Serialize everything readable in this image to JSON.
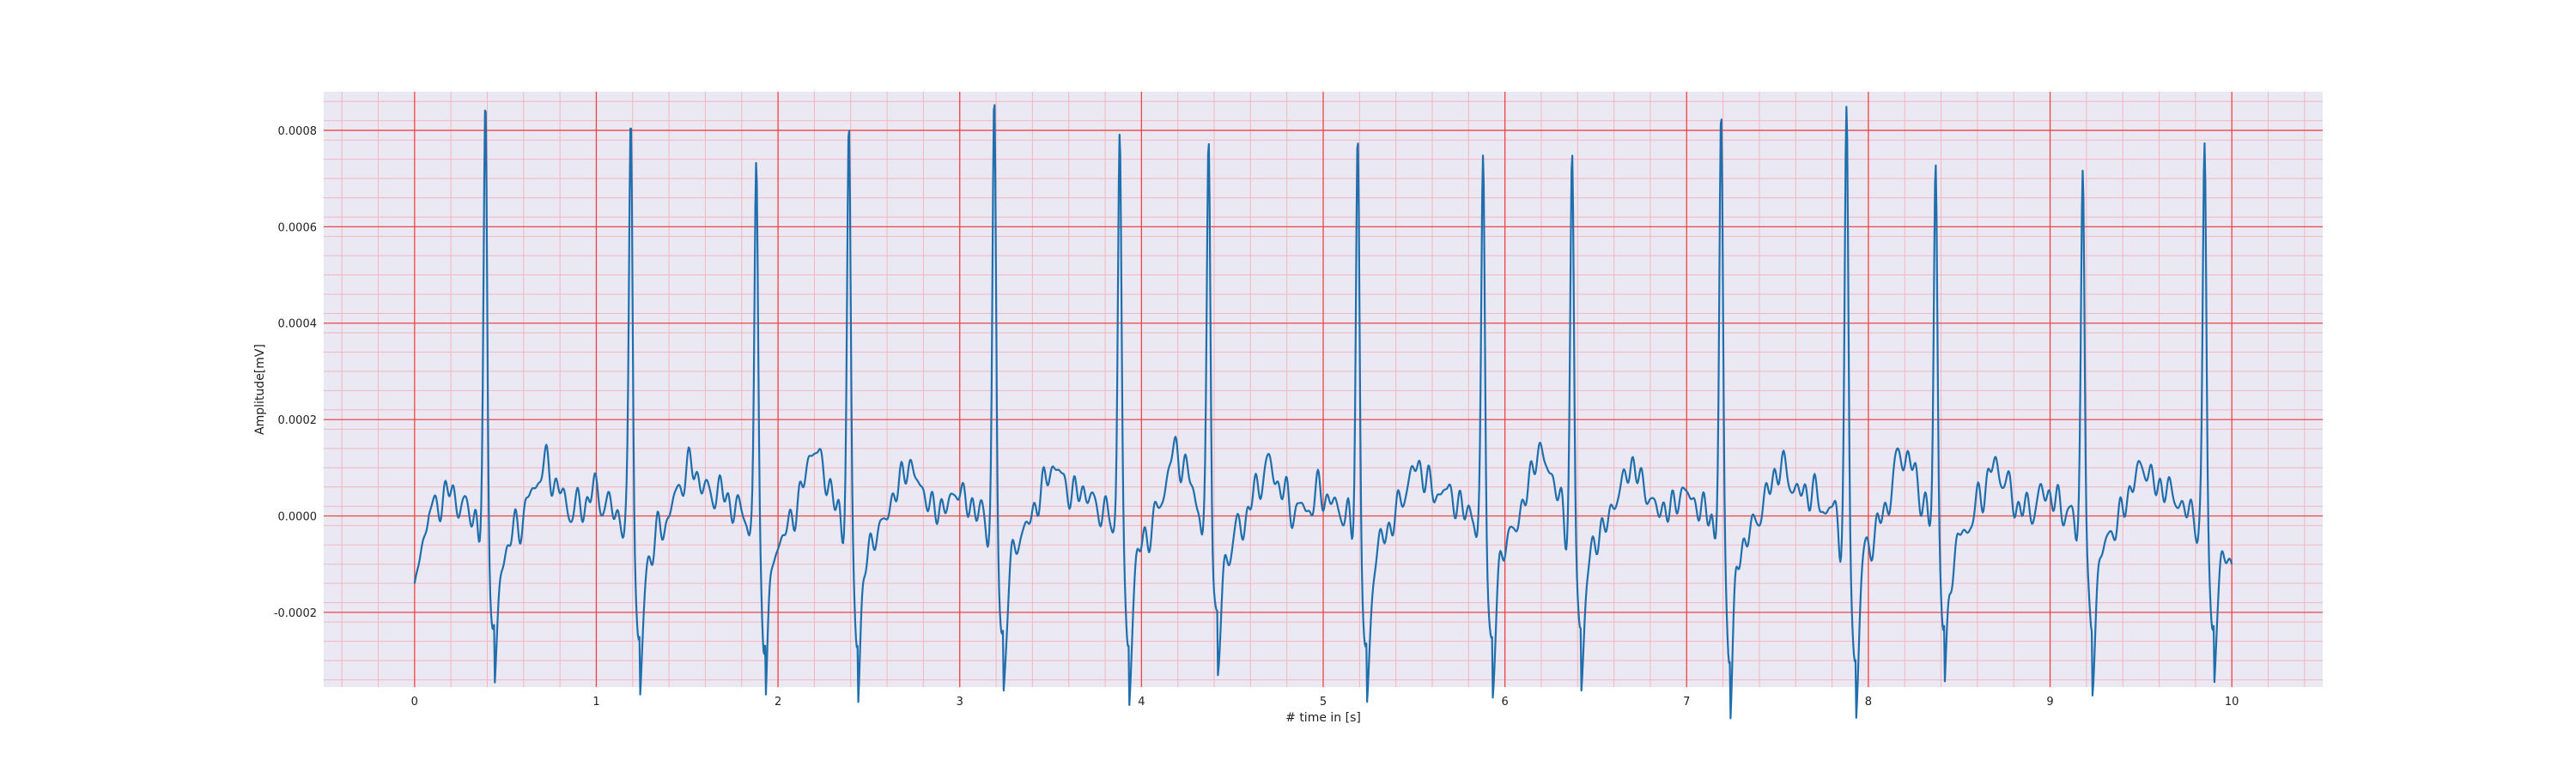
{
  "chart_data": {
    "type": "line",
    "title": "",
    "xlabel": "# time in [s]",
    "ylabel": "Amplitude[mV]",
    "xlim": [
      -0.5,
      10.5
    ],
    "ylim": [
      -0.000355,
      0.00088
    ],
    "x_ticks": [
      0,
      1,
      2,
      3,
      4,
      5,
      6,
      7,
      8,
      9,
      10
    ],
    "x_tick_labels": [
      "0",
      "1",
      "2",
      "3",
      "4",
      "5",
      "6",
      "7",
      "8",
      "9",
      "10"
    ],
    "y_ticks": [
      -0.0002,
      0.0,
      0.0002,
      0.0004,
      0.0006,
      0.0008
    ],
    "y_tick_labels": [
      "-0.0002",
      "0.0000",
      "0.0002",
      "0.0004",
      "0.0006",
      "0.0008"
    ],
    "grid": {
      "major": true,
      "minor": true,
      "major_color": "#ee4444",
      "minor_color": "#f2b6c0"
    },
    "background_color": "#eae8f2",
    "series": [
      {
        "color": "#1f6fad",
        "beat_times": [
          0.39,
          1.19,
          1.88,
          2.39,
          3.19,
          3.88,
          4.37,
          5.19,
          5.88,
          6.37,
          7.19,
          7.88,
          8.37,
          9.18,
          9.85
        ],
        "r_peaks": [
          0.00081,
          0.000822,
          0.00071,
          0.000775,
          0.00082,
          0.00079,
          0.00074,
          0.000755,
          0.00072,
          0.000705,
          0.0008,
          0.000785,
          0.00072,
          0.00071,
          0.000758
        ],
        "s_troughs": [
          -0.00025,
          -0.00027,
          -0.00025,
          -0.00025,
          -0.00026,
          -0.00027,
          -0.00022,
          -0.0003,
          -0.00028,
          -0.00024,
          -0.00028,
          -0.0003,
          -0.00024,
          -0.00025,
          -0.00024
        ],
        "start_value": -0.00014,
        "end_value": -0.0001
      }
    ]
  }
}
